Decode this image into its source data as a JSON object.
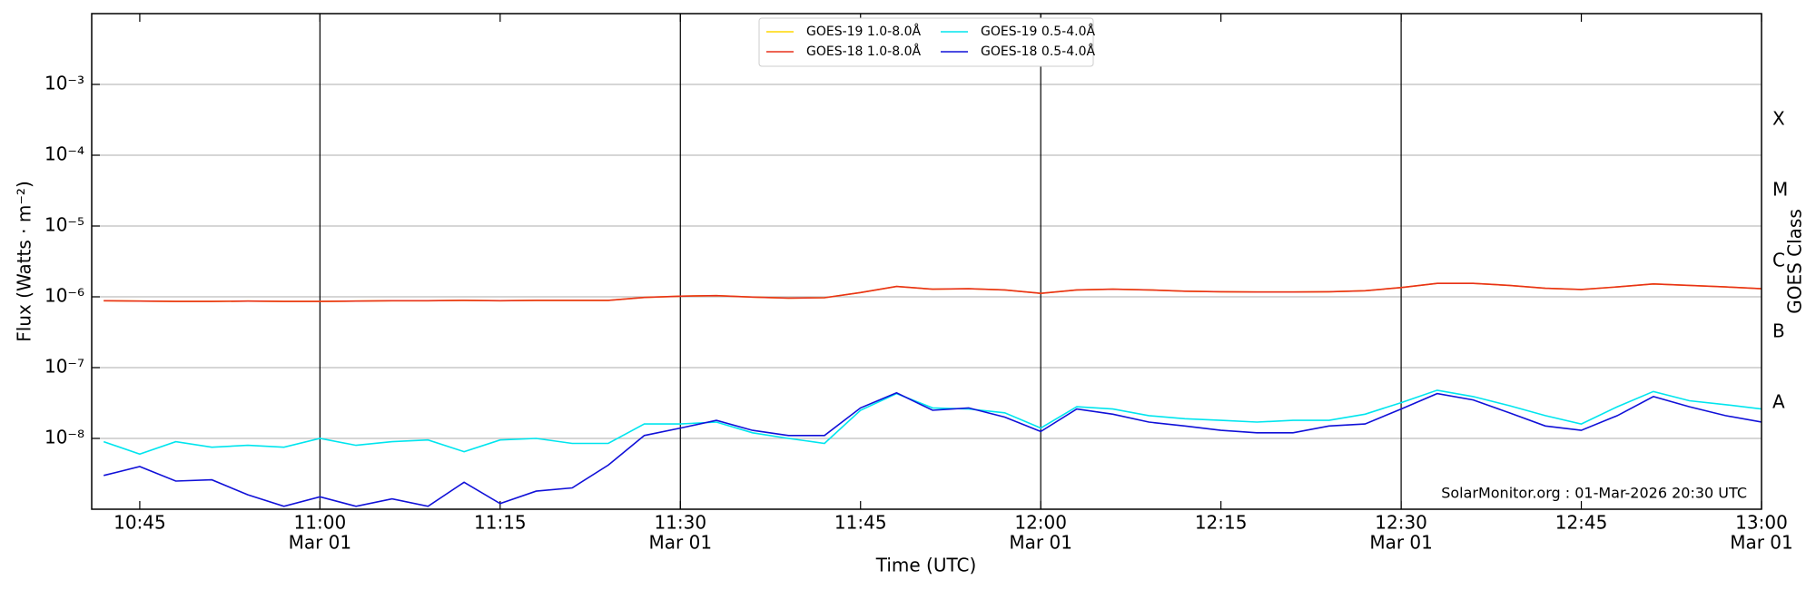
{
  "chart_data": {
    "type": "line",
    "y_label": "Flux (Watts · m⁻²)",
    "x_label": "Time (UTC)",
    "y2_label": "GOES Class",
    "annotation": "SolarMonitor.org : 01-Mar-2026 20:30 UTC",
    "log_y": true,
    "grid": true,
    "legend": "top-center",
    "xlim": [
      "10:41",
      "13:00"
    ],
    "xticks": [
      "10:45",
      "11:00",
      "11:15",
      "11:30",
      "11:45",
      "12:00",
      "12:15",
      "12:30",
      "12:45",
      "13:00"
    ],
    "xtick_dates": [
      null,
      "Mar 01",
      null,
      "Mar 01",
      null,
      "Mar 01",
      null,
      "Mar 01",
      null,
      "Mar 01"
    ],
    "vlines": [
      "11:00",
      "11:30",
      "12:00",
      "12:30"
    ],
    "ylim": [
      1e-09,
      0.01
    ],
    "yticks": [
      {
        "value": 1e-08,
        "label": "10⁻⁸"
      },
      {
        "value": 1e-07,
        "label": "10⁻⁷"
      },
      {
        "value": 1e-06,
        "label": "10⁻⁶"
      },
      {
        "value": 1e-05,
        "label": "10⁻⁵"
      },
      {
        "value": 0.0001,
        "label": "10⁻⁴"
      },
      {
        "value": 0.001,
        "label": "10⁻³"
      }
    ],
    "y2lim": [
      1e-09,
      0.01
    ],
    "y2ticks": [
      {
        "value": 3.16e-08,
        "label": "A"
      },
      {
        "value": 3.16e-07,
        "label": "B"
      },
      {
        "value": 3.16e-06,
        "label": "C"
      },
      {
        "value": 3.16e-05,
        "label": "M"
      },
      {
        "value": 0.000316,
        "label": "X"
      }
    ],
    "x": [
      "10:42",
      "10:45",
      "10:48",
      "10:51",
      "10:54",
      "10:57",
      "11:00",
      "11:03",
      "11:06",
      "11:09",
      "11:12",
      "11:15",
      "11:18",
      "11:21",
      "11:24",
      "11:27",
      "11:30",
      "11:33",
      "11:36",
      "11:39",
      "11:42",
      "11:45",
      "11:48",
      "11:51",
      "11:54",
      "11:57",
      "12:00",
      "12:03",
      "12:06",
      "12:09",
      "12:12",
      "12:15",
      "12:18",
      "12:21",
      "12:24",
      "12:27",
      "12:30",
      "12:33",
      "12:36",
      "12:39",
      "12:42",
      "12:45",
      "12:48",
      "12:51",
      "12:54",
      "12:57",
      "13:00"
    ],
    "series": [
      {
        "name": "GOES-19 1.0-8.0Å",
        "color": "#ffd700",
        "values": [
          8.8e-07,
          8.7e-07,
          8.6e-07,
          8.6e-07,
          8.7e-07,
          8.6e-07,
          8.6e-07,
          8.7e-07,
          8.8e-07,
          8.8e-07,
          8.9e-07,
          8.8e-07,
          8.9e-07,
          8.9e-07,
          8.9e-07,
          9.8e-07,
          1.02e-06,
          1.04e-06,
          9.9e-07,
          9.6e-07,
          9.7e-07,
          1.15e-06,
          1.4e-06,
          1.28e-06,
          1.3e-06,
          1.25e-06,
          1.12e-06,
          1.25e-06,
          1.28e-06,
          1.25e-06,
          1.2e-06,
          1.18e-06,
          1.17e-06,
          1.17e-06,
          1.18e-06,
          1.22e-06,
          1.35e-06,
          1.55e-06,
          1.55e-06,
          1.45e-06,
          1.32e-06,
          1.27e-06,
          1.38e-06,
          1.52e-06,
          1.45e-06,
          1.38e-06,
          1.3e-06
        ]
      },
      {
        "name": "GOES-18 1.0-8.0Å",
        "color": "#e8301c",
        "values": [
          8.8e-07,
          8.7e-07,
          8.6e-07,
          8.6e-07,
          8.7e-07,
          8.6e-07,
          8.6e-07,
          8.7e-07,
          8.8e-07,
          8.8e-07,
          8.9e-07,
          8.8e-07,
          8.9e-07,
          8.9e-07,
          8.9e-07,
          9.8e-07,
          1.02e-06,
          1.04e-06,
          9.9e-07,
          9.6e-07,
          9.7e-07,
          1.15e-06,
          1.4e-06,
          1.28e-06,
          1.3e-06,
          1.25e-06,
          1.12e-06,
          1.25e-06,
          1.28e-06,
          1.25e-06,
          1.2e-06,
          1.18e-06,
          1.17e-06,
          1.17e-06,
          1.18e-06,
          1.22e-06,
          1.35e-06,
          1.55e-06,
          1.55e-06,
          1.45e-06,
          1.32e-06,
          1.27e-06,
          1.38e-06,
          1.52e-06,
          1.45e-06,
          1.38e-06,
          1.3e-06
        ]
      },
      {
        "name": "GOES-19 0.5-4.0Å",
        "color": "#00e5ee",
        "values": [
          9e-09,
          6e-09,
          9e-09,
          7.5e-09,
          8e-09,
          7.5e-09,
          1e-08,
          8e-09,
          9e-09,
          9.5e-09,
          6.5e-09,
          9.5e-09,
          1e-08,
          8.5e-09,
          8.5e-09,
          1.6e-08,
          1.6e-08,
          1.7e-08,
          1.2e-08,
          1e-08,
          8.5e-09,
          2.5e-08,
          4.3e-08,
          2.7e-08,
          2.6e-08,
          2.3e-08,
          1.4e-08,
          2.8e-08,
          2.6e-08,
          2.1e-08,
          1.9e-08,
          1.8e-08,
          1.7e-08,
          1.8e-08,
          1.8e-08,
          2.2e-08,
          3.2e-08,
          4.8e-08,
          3.9e-08,
          2.9e-08,
          2.1e-08,
          1.6e-08,
          2.8e-08,
          4.6e-08,
          3.4e-08,
          3e-08,
          2.6e-08
        ]
      },
      {
        "name": "GOES-18 0.5-4.0Å",
        "color": "#1010d8",
        "values": [
          3e-09,
          4e-09,
          2.5e-09,
          2.6e-09,
          1.6e-09,
          1.1e-09,
          1.5e-09,
          1.1e-09,
          1.4e-09,
          1.1e-09,
          2.4e-09,
          1.2e-09,
          1.8e-09,
          2e-09,
          4.2e-09,
          1.1e-08,
          1.4e-08,
          1.8e-08,
          1.3e-08,
          1.1e-08,
          1.1e-08,
          2.7e-08,
          4.4e-08,
          2.5e-08,
          2.7e-08,
          2e-08,
          1.25e-08,
          2.6e-08,
          2.2e-08,
          1.7e-08,
          1.5e-08,
          1.3e-08,
          1.2e-08,
          1.2e-08,
          1.5e-08,
          1.6e-08,
          2.6e-08,
          4.3e-08,
          3.5e-08,
          2.3e-08,
          1.5e-08,
          1.3e-08,
          2.1e-08,
          3.9e-08,
          2.8e-08,
          2.1e-08,
          1.7e-08
        ]
      }
    ]
  }
}
